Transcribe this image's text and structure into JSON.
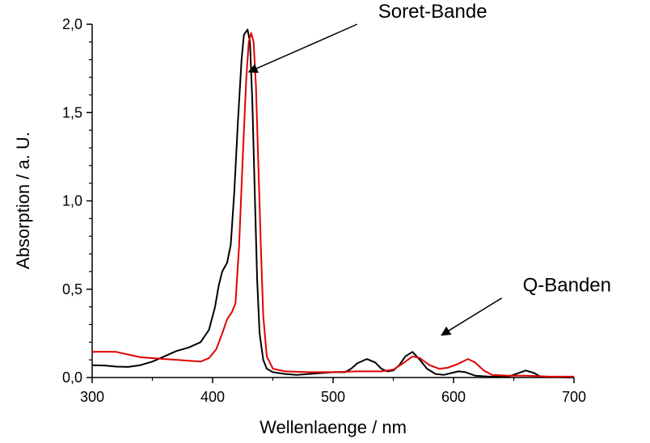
{
  "chart_data": {
    "type": "line",
    "xlabel": "Wellenlaenge / nm",
    "ylabel": "Absorption / a. U.",
    "xlim": [
      300,
      700
    ],
    "ylim": [
      0,
      2.0
    ],
    "x_ticks": [
      {
        "value": 300,
        "label": "300"
      },
      {
        "value": 400,
        "label": "400"
      },
      {
        "value": 500,
        "label": "500"
      },
      {
        "value": 600,
        "label": "600"
      },
      {
        "value": 700,
        "label": "700"
      }
    ],
    "y_ticks": [
      {
        "value": 0.0,
        "label": "0,0"
      },
      {
        "value": 0.5,
        "label": "0,5"
      },
      {
        "value": 1.0,
        "label": "1,0"
      },
      {
        "value": 1.5,
        "label": "1,5"
      },
      {
        "value": 2.0,
        "label": "2,0"
      }
    ],
    "grid": false,
    "legend": "none",
    "series": [
      {
        "color": "#000000",
        "points": [
          [
            300,
            0.07
          ],
          [
            310,
            0.068
          ],
          [
            320,
            0.062
          ],
          [
            330,
            0.06
          ],
          [
            340,
            0.07
          ],
          [
            350,
            0.09
          ],
          [
            360,
            0.12
          ],
          [
            370,
            0.15
          ],
          [
            380,
            0.17
          ],
          [
            390,
            0.2
          ],
          [
            397,
            0.27
          ],
          [
            402,
            0.4
          ],
          [
            405,
            0.52
          ],
          [
            408,
            0.6
          ],
          [
            412,
            0.65
          ],
          [
            415,
            0.75
          ],
          [
            418,
            1.05
          ],
          [
            421,
            1.45
          ],
          [
            424,
            1.8
          ],
          [
            426,
            1.94
          ],
          [
            429,
            1.97
          ],
          [
            431,
            1.9
          ],
          [
            433,
            1.55
          ],
          [
            435,
            1.05
          ],
          [
            437,
            0.55
          ],
          [
            439,
            0.25
          ],
          [
            442,
            0.1
          ],
          [
            445,
            0.05
          ],
          [
            450,
            0.03
          ],
          [
            460,
            0.02
          ],
          [
            470,
            0.015
          ],
          [
            480,
            0.02
          ],
          [
            490,
            0.025
          ],
          [
            500,
            0.03
          ],
          [
            510,
            0.03
          ],
          [
            515,
            0.05
          ],
          [
            520,
            0.08
          ],
          [
            528,
            0.105
          ],
          [
            535,
            0.085
          ],
          [
            540,
            0.05
          ],
          [
            545,
            0.035
          ],
          [
            550,
            0.04
          ],
          [
            555,
            0.07
          ],
          [
            560,
            0.12
          ],
          [
            566,
            0.145
          ],
          [
            572,
            0.1
          ],
          [
            578,
            0.05
          ],
          [
            585,
            0.02
          ],
          [
            592,
            0.015
          ],
          [
            598,
            0.025
          ],
          [
            604,
            0.035
          ],
          [
            610,
            0.03
          ],
          [
            618,
            0.01
          ],
          [
            630,
            0.005
          ],
          [
            645,
            0.005
          ],
          [
            652,
            0.02
          ],
          [
            660,
            0.04
          ],
          [
            667,
            0.025
          ],
          [
            672,
            0.005
          ],
          [
            690,
            0.002
          ],
          [
            700,
            0.0
          ]
        ]
      },
      {
        "color": "#e00000",
        "points": [
          [
            300,
            0.145
          ],
          [
            310,
            0.146
          ],
          [
            320,
            0.145
          ],
          [
            330,
            0.13
          ],
          [
            340,
            0.115
          ],
          [
            350,
            0.11
          ],
          [
            360,
            0.105
          ],
          [
            370,
            0.1
          ],
          [
            380,
            0.095
          ],
          [
            390,
            0.09
          ],
          [
            397,
            0.11
          ],
          [
            403,
            0.16
          ],
          [
            408,
            0.25
          ],
          [
            412,
            0.33
          ],
          [
            416,
            0.37
          ],
          [
            419,
            0.42
          ],
          [
            422,
            0.75
          ],
          [
            425,
            1.25
          ],
          [
            428,
            1.7
          ],
          [
            430,
            1.9
          ],
          [
            432,
            1.95
          ],
          [
            434,
            1.9
          ],
          [
            436,
            1.65
          ],
          [
            438,
            1.2
          ],
          [
            440,
            0.75
          ],
          [
            442,
            0.35
          ],
          [
            445,
            0.12
          ],
          [
            450,
            0.05
          ],
          [
            460,
            0.035
          ],
          [
            480,
            0.03
          ],
          [
            500,
            0.03
          ],
          [
            520,
            0.035
          ],
          [
            540,
            0.035
          ],
          [
            550,
            0.045
          ],
          [
            558,
            0.08
          ],
          [
            566,
            0.12
          ],
          [
            572,
            0.11
          ],
          [
            580,
            0.07
          ],
          [
            588,
            0.05
          ],
          [
            595,
            0.055
          ],
          [
            603,
            0.075
          ],
          [
            612,
            0.105
          ],
          [
            618,
            0.085
          ],
          [
            625,
            0.04
          ],
          [
            632,
            0.015
          ],
          [
            645,
            0.01
          ],
          [
            660,
            0.01
          ],
          [
            680,
            0.005
          ],
          [
            700,
            0.005
          ]
        ]
      }
    ],
    "annotations": [
      {
        "text": "Soret-Bande",
        "arrow_tip": [
          430,
          1.73
        ],
        "arrow_tail": [
          520,
          2.0
        ]
      },
      {
        "text": "Q-Banden",
        "arrow_tip": [
          590,
          0.24
        ],
        "arrow_tail": [
          640,
          0.45
        ]
      }
    ]
  }
}
